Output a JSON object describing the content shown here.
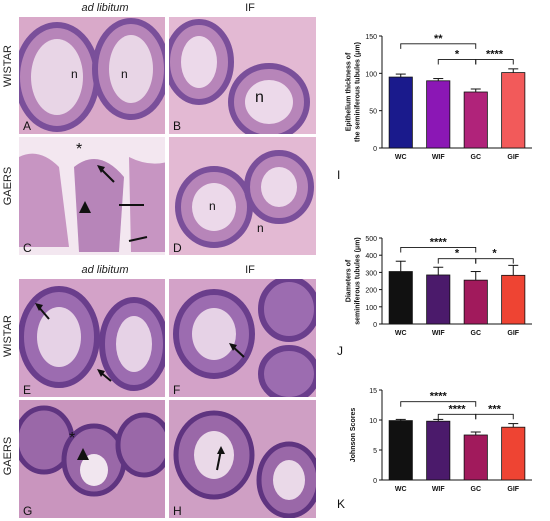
{
  "micro_top": {
    "col_left": "ad libitum",
    "col_right": "IF",
    "row_top": "WISTAR",
    "row_bottom": "GAERS",
    "panels": [
      "A",
      "B",
      "C",
      "D"
    ],
    "marks": [
      "n",
      "n",
      "n",
      "*",
      "n",
      "n"
    ]
  },
  "micro_bottom": {
    "col_left": "ad libitum",
    "col_right": "IF",
    "row_top": "WISTAR",
    "row_bottom": "GAERS",
    "panels": [
      "E",
      "F",
      "G",
      "H"
    ],
    "marks": [
      "*"
    ]
  },
  "colors": {
    "tissue_bg": "#d9a9c9",
    "tissue_cells": "#7a4f9a",
    "WC": "#1a1a8c",
    "WIF": "#8b17b5",
    "GC": "#b0237a",
    "GIF": "#f25a5a",
    "WC2": "#111111",
    "WIF2": "#4b1a6b",
    "GC2": "#a11a5c",
    "GIF2": "#ee4433"
  },
  "chart_data": [
    {
      "type": "bar",
      "panel": "I",
      "categories": [
        "WC",
        "WIF",
        "GC",
        "GIF"
      ],
      "values": [
        95,
        90,
        75,
        101
      ],
      "errors": [
        4,
        3,
        4,
        5
      ],
      "ylabel": "Epithelium thickness of the seminiferous tubules (μm)",
      "ylim": [
        0,
        150
      ],
      "yticks": [
        "0",
        "50",
        "100",
        "150"
      ],
      "significance": [
        "**",
        "*",
        "****"
      ]
    },
    {
      "type": "bar",
      "panel": "J",
      "categories": [
        "WC",
        "WIF",
        "GC",
        "GIF"
      ],
      "values": [
        305,
        285,
        255,
        283
      ],
      "errors": [
        60,
        45,
        50,
        58
      ],
      "ylabel": "Diameters of seminiferous tubules (μm)",
      "ylim": [
        0,
        500
      ],
      "yticks": [
        "0",
        "100",
        "200",
        "300",
        "400",
        "500"
      ],
      "significance": [
        "****",
        "*",
        "*"
      ]
    },
    {
      "type": "bar",
      "panel": "K",
      "categories": [
        "WC",
        "WIF",
        "GC",
        "GIF"
      ],
      "values": [
        9.9,
        9.8,
        7.5,
        8.8
      ],
      "errors": [
        0.2,
        0.3,
        0.5,
        0.6
      ],
      "ylabel": "Johnson Scores",
      "ylim": [
        0,
        15
      ],
      "yticks": [
        "0",
        "5",
        "10",
        "15"
      ],
      "significance": [
        "****",
        "****",
        "***"
      ]
    }
  ]
}
